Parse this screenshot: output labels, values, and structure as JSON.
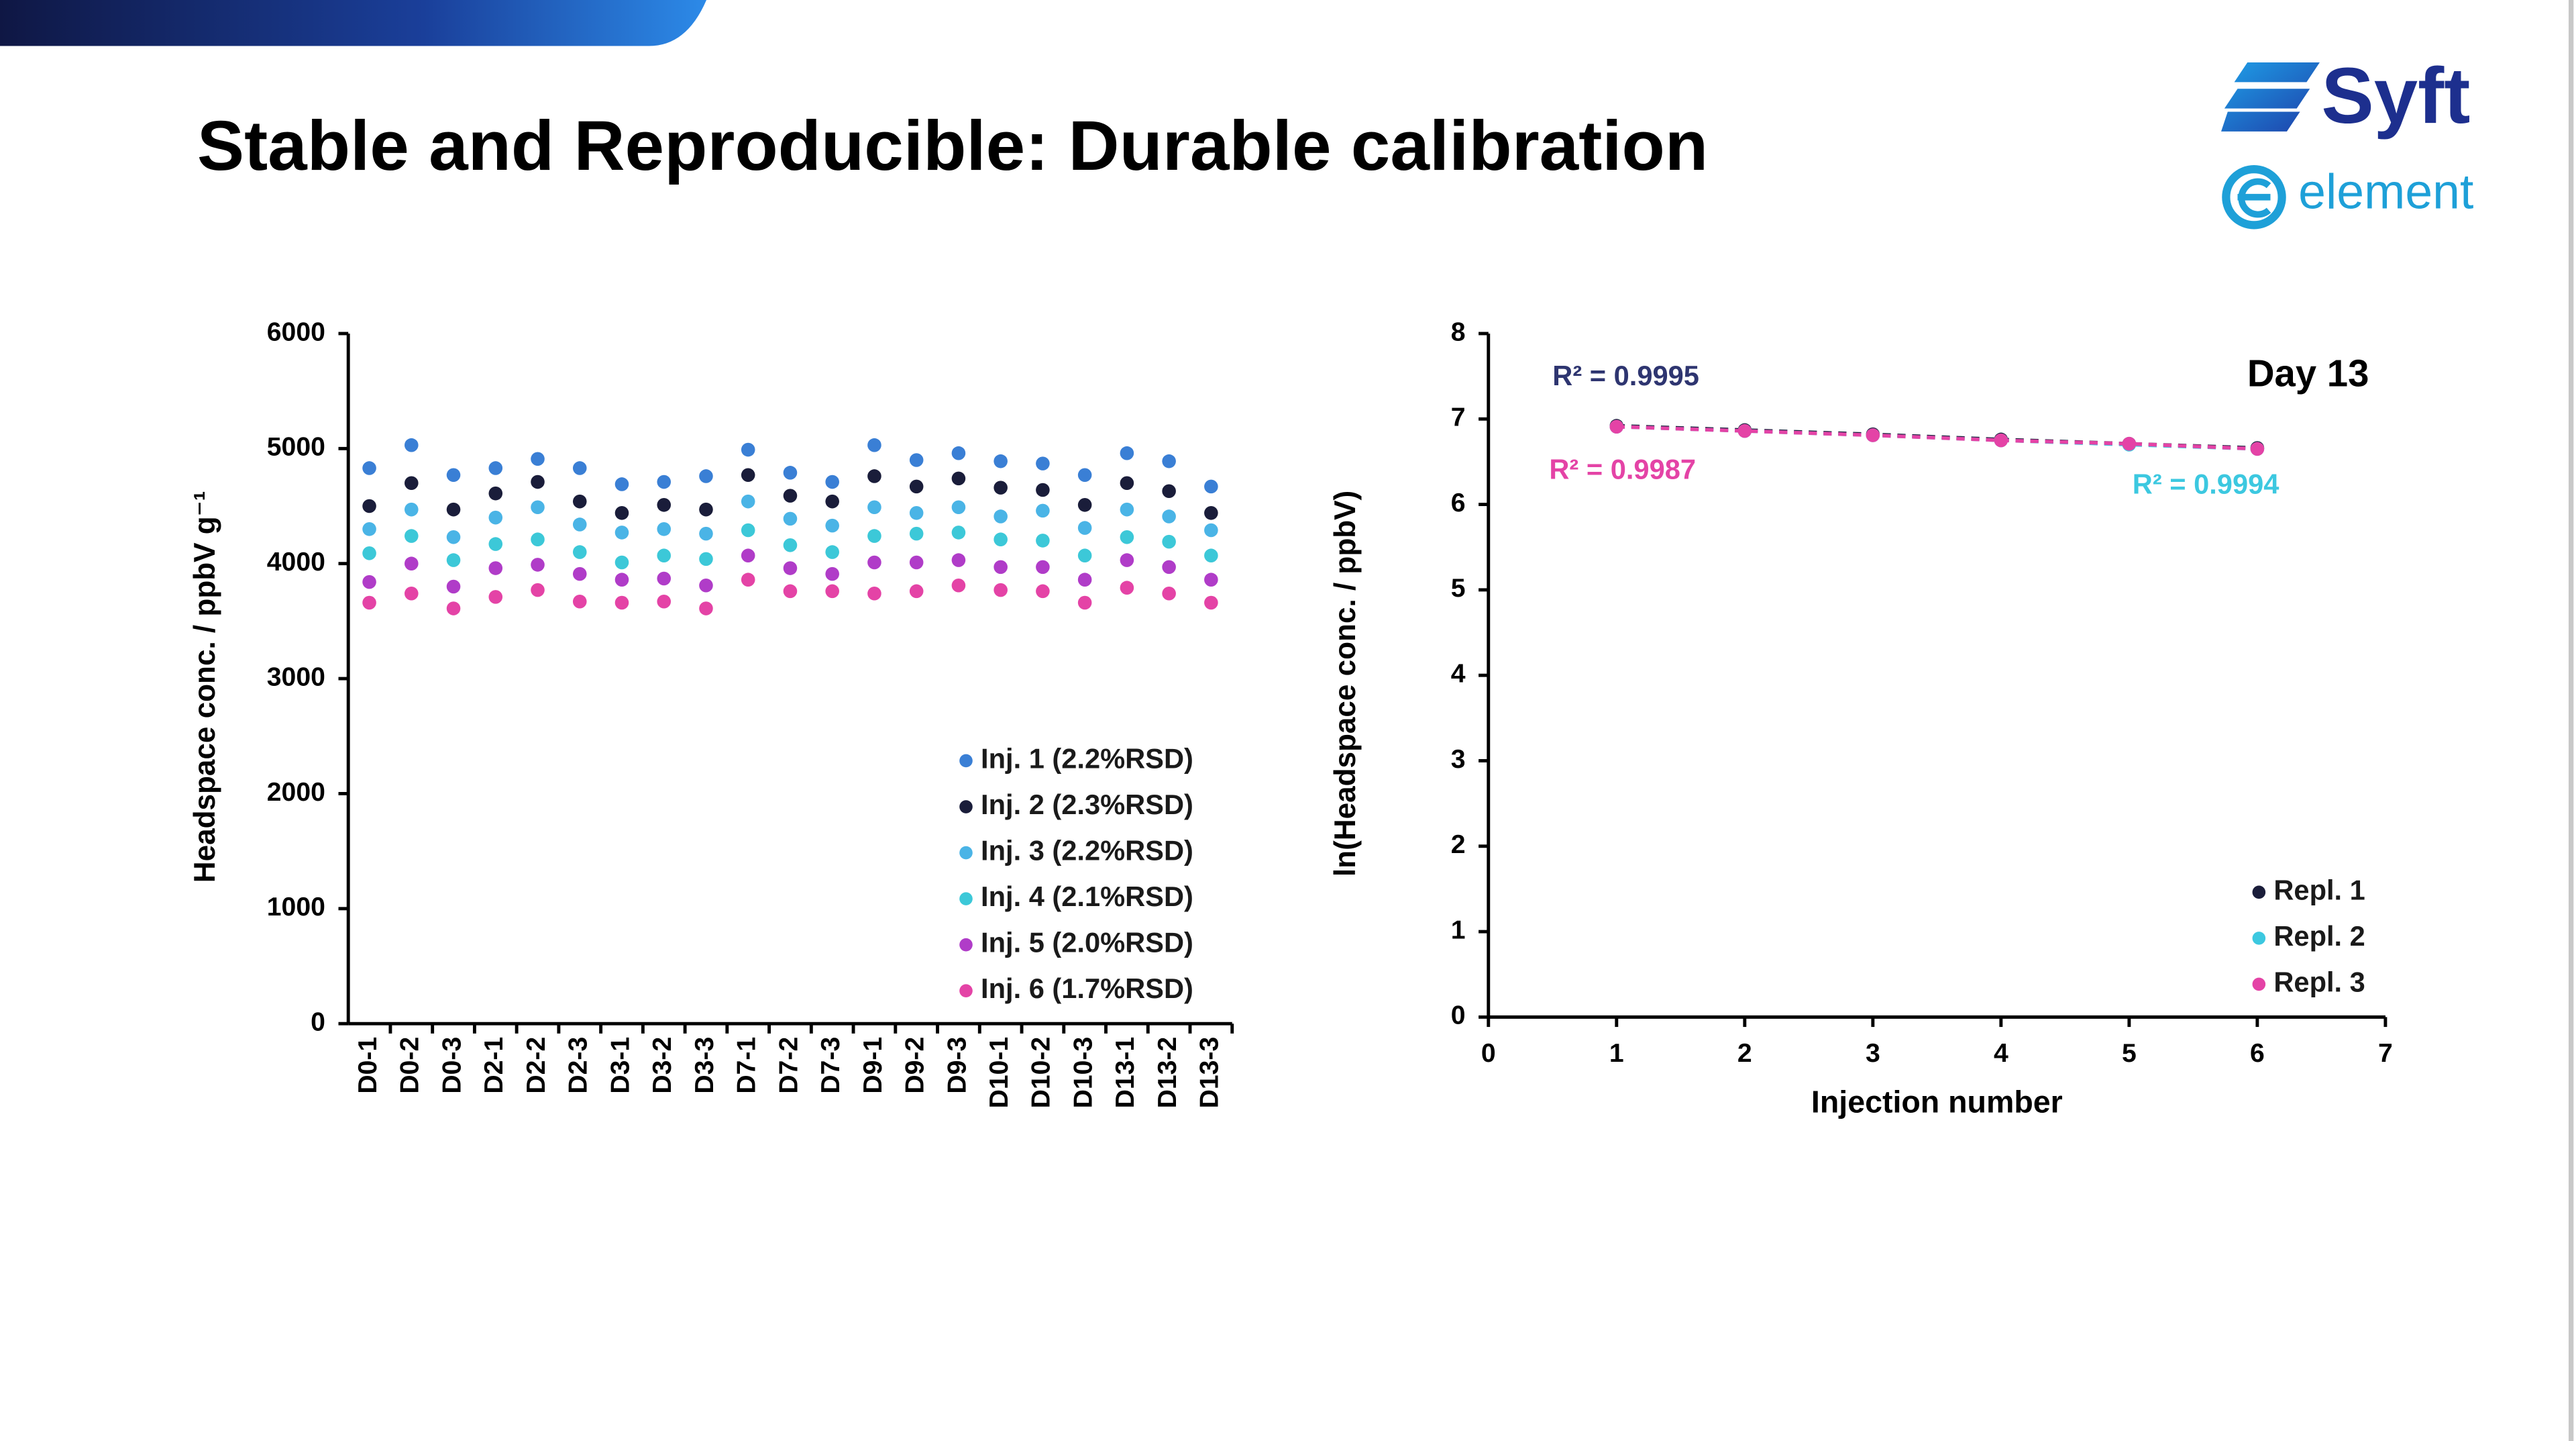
{
  "title": "Stable and Reproducible: Durable calibration",
  "logos": [
    "Syft",
    "element"
  ],
  "chart_data": [
    {
      "type": "scatter",
      "y_label": "Headspace conc. / ppbV g⁻¹",
      "categories": [
        "D0-1",
        "D0-2",
        "D0-3",
        "D2-1",
        "D2-2",
        "D2-3",
        "D3-1",
        "D3-2",
        "D3-3",
        "D7-1",
        "D7-2",
        "D7-3",
        "D9-1",
        "D9-2",
        "D9-3",
        "D10-1",
        "D10-2",
        "D10-3",
        "D13-1",
        "D13-2",
        "D13-3"
      ],
      "series": [
        {
          "name": "Inj. 1 (2.2%RSD)",
          "color": "#3a7fd5",
          "values": [
            4830,
            5030,
            4770,
            4830,
            4910,
            4830,
            4690,
            4710,
            4760,
            4990,
            4790,
            4710,
            5030,
            4900,
            4960,
            4890,
            4870,
            4770,
            4960,
            4890,
            4670
          ]
        },
        {
          "name": "Inj. 2 (2.3%RSD)",
          "color": "#1a1d3a",
          "values": [
            4500,
            4700,
            4470,
            4610,
            4710,
            4540,
            4440,
            4510,
            4470,
            4770,
            4590,
            4540,
            4760,
            4670,
            4740,
            4660,
            4640,
            4510,
            4700,
            4630,
            4440
          ]
        },
        {
          "name": "Inj. 3 (2.2%RSD)",
          "color": "#4ab4e6",
          "values": [
            4300,
            4470,
            4230,
            4400,
            4490,
            4340,
            4270,
            4300,
            4260,
            4540,
            4390,
            4330,
            4490,
            4440,
            4490,
            4410,
            4460,
            4310,
            4470,
            4410,
            4290
          ]
        },
        {
          "name": "Inj. 4 (2.1%RSD)",
          "color": "#3cc8d8",
          "values": [
            4090,
            4240,
            4030,
            4170,
            4210,
            4100,
            4010,
            4070,
            4040,
            4290,
            4160,
            4100,
            4240,
            4260,
            4270,
            4210,
            4200,
            4070,
            4230,
            4190,
            4070
          ]
        },
        {
          "name": "Inj. 5 (2.0%RSD)",
          "color": "#b03cc8",
          "values": [
            3840,
            4000,
            3800,
            3960,
            3990,
            3910,
            3860,
            3870,
            3810,
            4070,
            3960,
            3910,
            4010,
            4010,
            4030,
            3970,
            3970,
            3860,
            4030,
            3970,
            3860
          ]
        },
        {
          "name": "Inj. 6 (1.7%RSD)",
          "color": "#e443a6",
          "values": [
            3660,
            3740,
            3610,
            3710,
            3770,
            3670,
            3660,
            3670,
            3610,
            3860,
            3760,
            3760,
            3740,
            3760,
            3810,
            3770,
            3760,
            3660,
            3790,
            3740,
            3660
          ]
        }
      ],
      "ylim": [
        0,
        6000
      ],
      "yticks": [
        0,
        1000,
        2000,
        3000,
        4000,
        5000,
        6000
      ],
      "legend": "lower right"
    },
    {
      "type": "line",
      "x_label": "Injection number",
      "y_label": "ln(Headspace conc. / ppbV)",
      "x": [
        1,
        2,
        3,
        4,
        5,
        6
      ],
      "series": [
        {
          "name": "Repl. 1",
          "color": "#1a1d3a",
          "values": [
            6.92,
            6.87,
            6.82,
            6.76,
            6.71,
            6.66
          ]
        },
        {
          "name": "Repl. 2",
          "color": "#3cc8e0",
          "values": [
            6.91,
            6.86,
            6.81,
            6.75,
            6.7,
            6.65
          ]
        },
        {
          "name": "Repl. 3",
          "color": "#e443a6",
          "values": [
            6.91,
            6.86,
            6.81,
            6.75,
            6.71,
            6.65
          ]
        }
      ],
      "xlim": [
        0,
        7
      ],
      "xticks": [
        0,
        1,
        2,
        3,
        4,
        5,
        6,
        7
      ],
      "ylim": [
        0,
        8
      ],
      "yticks": [
        0,
        1,
        2,
        3,
        4,
        5,
        6,
        7,
        8
      ],
      "line_style": "dashed",
      "legend": "lower right",
      "annotations": [
        {
          "text": "R² = 0.9995",
          "color": "#2e3570"
        },
        {
          "text": "R² = 0.9987",
          "color": "#e443a6"
        },
        {
          "text": "R² = 0.9994",
          "color": "#3cc8e0"
        },
        {
          "text": "Day 13",
          "color": "#000000"
        }
      ]
    }
  ]
}
